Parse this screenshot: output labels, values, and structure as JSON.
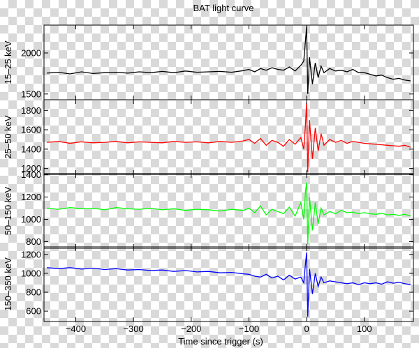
{
  "chart_data": {
    "type": "line",
    "title": "BAT light curve",
    "xlabel": "Time since trigger (s)",
    "xlim": [
      -455,
      185
    ],
    "xticks": [
      -400,
      -300,
      -200,
      -100,
      0,
      100
    ],
    "xtick_labels": [
      "−400",
      "−300",
      "−200",
      "−100",
      "0",
      "100"
    ],
    "grid": false,
    "panels": [
      {
        "ylabel": "15–25 keV",
        "color": "#000000",
        "ylim": [
          1430,
          2340
        ],
        "yticks": [
          1500,
          2000
        ],
        "series": {
          "x": [
            -450,
            -430,
            -410,
            -390,
            -370,
            -350,
            -330,
            -310,
            -290,
            -270,
            -250,
            -230,
            -210,
            -190,
            -170,
            -150,
            -130,
            -110,
            -100,
            -90,
            -80,
            -70,
            -60,
            -50,
            -40,
            -30,
            -20,
            -10,
            -5,
            -2,
            0,
            2,
            5,
            10,
            15,
            20,
            25,
            30,
            40,
            50,
            60,
            70,
            80,
            90,
            100,
            110,
            120,
            130,
            140,
            150,
            160,
            170,
            180
          ],
          "y": [
            1755,
            1765,
            1745,
            1770,
            1750,
            1760,
            1765,
            1755,
            1770,
            1760,
            1775,
            1760,
            1780,
            1765,
            1770,
            1775,
            1765,
            1785,
            1800,
            1770,
            1810,
            1790,
            1820,
            1800,
            1790,
            1830,
            1780,
            1850,
            1900,
            2150,
            2320,
            1500,
            1950,
            1620,
            1880,
            1700,
            1840,
            1760,
            1810,
            1780,
            1790,
            1770,
            1800,
            1760,
            1760,
            1740,
            1720,
            1730,
            1700,
            1680,
            1690,
            1670,
            1660
          ]
        }
      },
      {
        "ylabel": "25–50 keV",
        "color": "#ff0000",
        "ylim": [
          1140,
          1910
        ],
        "yticks": [
          1200,
          1400,
          1600,
          1800
        ],
        "series": {
          "x": [
            -450,
            -430,
            -410,
            -390,
            -370,
            -350,
            -330,
            -310,
            -290,
            -270,
            -250,
            -230,
            -210,
            -190,
            -170,
            -150,
            -130,
            -110,
            -100,
            -90,
            -80,
            -70,
            -60,
            -50,
            -40,
            -30,
            -20,
            -10,
            -5,
            -2,
            0,
            2,
            5,
            10,
            15,
            20,
            25,
            30,
            40,
            50,
            60,
            70,
            80,
            90,
            100,
            110,
            120,
            130,
            140,
            150,
            160,
            170,
            180
          ],
          "y": [
            1470,
            1480,
            1460,
            1475,
            1465,
            1470,
            1480,
            1465,
            1475,
            1470,
            1465,
            1480,
            1470,
            1475,
            1465,
            1480,
            1470,
            1485,
            1500,
            1460,
            1510,
            1440,
            1490,
            1470,
            1430,
            1500,
            1450,
            1520,
            1400,
            1650,
            1880,
            1160,
            1700,
            1300,
            1620,
            1380,
            1560,
            1440,
            1500,
            1470,
            1490,
            1460,
            1480,
            1470,
            1460,
            1455,
            1450,
            1445,
            1440,
            1435,
            1430,
            1440,
            1420
          ]
        }
      },
      {
        "ylabel": "50–150 keV",
        "color": "#00ff00",
        "ylim": [
          740,
          1410
        ],
        "yticks": [
          800,
          1000,
          1200,
          1400
        ],
        "series": {
          "x": [
            -450,
            -430,
            -410,
            -390,
            -370,
            -350,
            -330,
            -310,
            -290,
            -270,
            -250,
            -230,
            -210,
            -190,
            -170,
            -150,
            -130,
            -110,
            -100,
            -90,
            -80,
            -70,
            -60,
            -50,
            -40,
            -30,
            -20,
            -10,
            -5,
            -2,
            0,
            2,
            5,
            10,
            15,
            20,
            25,
            30,
            40,
            50,
            60,
            70,
            80,
            90,
            100,
            110,
            120,
            130,
            140,
            150,
            160,
            170,
            180
          ],
          "y": [
            1100,
            1090,
            1105,
            1095,
            1100,
            1085,
            1105,
            1095,
            1090,
            1100,
            1085,
            1095,
            1080,
            1090,
            1085,
            1075,
            1090,
            1080,
            1100,
            1060,
            1120,
            1040,
            1090,
            1070,
            1050,
            1110,
            1030,
            1150,
            1000,
            1250,
            1330,
            780,
            1200,
            900,
            1150,
            960,
            1100,
            1040,
            1070,
            1050,
            1080,
            1060,
            1065,
            1050,
            1060,
            1050,
            1045,
            1055,
            1040,
            1045,
            1035,
            1045,
            1030
          ]
        }
      },
      {
        "ylabel": "150–350 keV",
        "color": "#0000ff",
        "ylim": [
          490,
          1280
        ],
        "yticks": [
          600,
          800,
          1000,
          1200
        ],
        "series": {
          "x": [
            -450,
            -430,
            -410,
            -390,
            -370,
            -350,
            -330,
            -310,
            -290,
            -270,
            -250,
            -230,
            -210,
            -190,
            -170,
            -150,
            -130,
            -110,
            -100,
            -90,
            -80,
            -70,
            -60,
            -50,
            -40,
            -30,
            -20,
            -10,
            -5,
            -2,
            0,
            2,
            5,
            10,
            15,
            20,
            25,
            30,
            40,
            50,
            60,
            70,
            80,
            90,
            100,
            110,
            120,
            130,
            140,
            150,
            160,
            170,
            180
          ],
          "y": [
            1060,
            1050,
            1060,
            1045,
            1055,
            1040,
            1050,
            1035,
            1040,
            1030,
            1035,
            1020,
            1030,
            1015,
            1020,
            1005,
            1010,
            995,
            990,
            970,
            960,
            990,
            950,
            970,
            930,
            980,
            940,
            960,
            900,
            1100,
            1220,
            540,
            1050,
            780,
            1000,
            860,
            960,
            900,
            920,
            910,
            900,
            890,
            900,
            880,
            900,
            890,
            900,
            885,
            910,
            895,
            905,
            890,
            880
          ]
        }
      }
    ]
  }
}
